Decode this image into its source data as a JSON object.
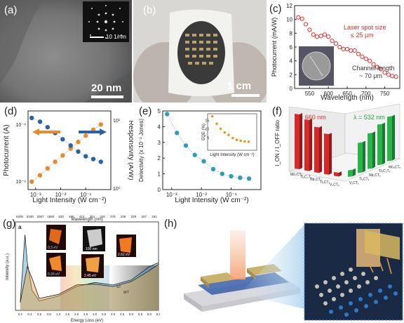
{
  "figure": {
    "panels": {
      "a": {
        "label": "(a)",
        "scale_bar": "20 nm",
        "inset_scale": "10 1/nm"
      },
      "b": {
        "label": "(b)",
        "scale_bar": "1 cm"
      },
      "c": {
        "label": "(c)",
        "annotation1": "Laser spot size",
        "annotation2": "≤ 25 μm",
        "annotation3": "Channel length",
        "annotation4": "~ 70 μm"
      },
      "d": {
        "label": "(d)"
      },
      "e": {
        "label": "(e)"
      },
      "f": {
        "label": "(f)",
        "lambda1": "λ = 660 nm",
        "lambda2": "λ = 532 nm"
      },
      "g": {
        "label": "(g)",
        "sublabel": "a",
        "x2label": "Wavelength (nm)",
        "insets": [
          "0.3 eV",
          "0.26 eV",
          "100 nm",
          "2.45 eV",
          "2.62 eV"
        ],
        "curve_labels": [
          "ST",
          "WT"
        ]
      },
      "h": {
        "label": "(h)"
      }
    }
  },
  "chart_data": [
    {
      "type": "scatter",
      "panel": "c",
      "xlabel": "Wavelength (nm)",
      "ylabel": "Photocurrent (mA/W)",
      "xlim": [
        510,
        790
      ],
      "ylim": [
        0,
        12
      ],
      "xticks": [
        "550",
        "600",
        "650",
        "700",
        "750"
      ],
      "yticks": [
        "0",
        "2",
        "4",
        "6",
        "8",
        "10",
        "12"
      ],
      "x": [
        520,
        530,
        540,
        550,
        560,
        570,
        580,
        590,
        600,
        610,
        620,
        630,
        640,
        650,
        660,
        670,
        680,
        690,
        700,
        710,
        720,
        730,
        740,
        750,
        760,
        770,
        780
      ],
      "values": [
        10.3,
        10.1,
        9.3,
        8.5,
        7.8,
        7.5,
        7.6,
        7.8,
        7.5,
        6.9,
        6.5,
        6.0,
        5.7,
        5.7,
        5.5,
        5.5,
        5.0,
        4.6,
        4.3,
        4.0,
        3.5,
        3.1,
        2.8,
        2.3,
        2.0,
        1.8,
        1.7
      ]
    },
    {
      "type": "scatter",
      "panel": "d",
      "xlabel": "Light Intensity (W cm⁻²)",
      "ylabel": "Photocurrent (A)",
      "y2label": "Responsivity (A/W)",
      "xlim": [
        0.0005,
        1
      ],
      "xticks": [
        "10⁻³",
        "10⁻²",
        "10⁻¹"
      ],
      "yticks": [
        "10⁻⁶",
        "10⁻⁴"
      ],
      "y2ticks": [
        "10⁰",
        "10¹"
      ],
      "series": [
        {
          "values": [
            [
              0.0007,
              9.5e-07
            ],
            [
              0.0015,
              1.6e-06
            ],
            [
              0.003,
              2.8e-06
            ],
            [
              0.006,
              4.8e-06
            ],
            [
              0.012,
              8e-06
            ],
            [
              0.025,
              1.4e-05
            ],
            [
              0.05,
              2.4e-05
            ],
            [
              0.1,
              4e-05
            ],
            [
              0.2,
              6.5e-05
            ],
            [
              0.4,
              0.0001
            ]
          ]
        },
        {
          "values": [
            [
              0.0007,
              0.00017
            ],
            [
              0.0015,
              0.000125
            ],
            [
              0.003,
              8e-05
            ],
            [
              0.006,
              5e-05
            ],
            [
              0.012,
              3e-05
            ],
            [
              0.025,
              1.8e-05
            ],
            [
              0.05,
              1.1e-05
            ],
            [
              0.1,
              7.5e-06
            ],
            [
              0.2,
              6e-06
            ],
            [
              0.4,
              4.8e-06
            ]
          ]
        }
      ]
    },
    {
      "type": "scatter",
      "panel": "e",
      "xlabel": "Light Intensity (W cm⁻²)",
      "ylabel": "Detectivity (x 10⁻¹ Jones)",
      "xlim": [
        0.0005,
        1
      ],
      "ylim": [
        0,
        5
      ],
      "xticks": [
        "10⁻³",
        "10⁻²",
        "10⁻¹"
      ],
      "yticks": [
        "0",
        "1",
        "2",
        "3",
        "4",
        "5"
      ],
      "values": [
        [
          0.0007,
          4.8
        ],
        [
          0.0015,
          3.6
        ],
        [
          0.003,
          2.8
        ],
        [
          0.006,
          2.2
        ],
        [
          0.012,
          1.8
        ],
        [
          0.025,
          1.3
        ],
        [
          0.05,
          1.0
        ],
        [
          0.1,
          0.85
        ],
        [
          0.2,
          0.75
        ],
        [
          0.4,
          0.7
        ]
      ],
      "inset": {
        "xlabel": "Light Intensity (W cm⁻²)",
        "ylabel": "EQE (%)",
        "yticks": [
          "5",
          "10",
          "15"
        ]
      }
    },
    {
      "type": "bar",
      "panel": "f",
      "ylabel": "I_ON / I_OFF ratio",
      "series": [
        {
          "name": "λ = 660 nm",
          "categories": [
            "Mo₂CTₓ",
            "Ti₃C₂Tₓ",
            "Nb₂CTₓ",
            "Ti₂CTₓ",
            "V₂CTₓ"
          ],
          "values": [
            10,
            9.3,
            8.3,
            7.4,
            0.7
          ]
        },
        {
          "name": "λ = 532 nm",
          "categories": [
            "V₂CTₓ",
            "Ti₂CTₓ",
            "Nb₂CTₓ",
            "Ti₃C₂Tₓ",
            "Mo₂CTₓ"
          ],
          "values": [
            1.2,
            5.5,
            6.5,
            7.4,
            8.1
          ]
        }
      ]
    },
    {
      "type": "line",
      "panel": "g",
      "xlabel": "Energy Loss (eV)",
      "ylabel": "Intensity (a.u.)",
      "xlim": [
        0.1,
        6.5
      ],
      "xticks": [
        "0.2",
        "0.4",
        "0.6",
        "0.8",
        "1.0",
        "1.5",
        "2.0",
        "2.5",
        "3.0",
        "3.5",
        "4.0",
        "4.5",
        "5.0",
        "5.5",
        "6.0",
        "6.5"
      ],
      "x2ticks": [
        "6200",
        "3100",
        "2067",
        "1550",
        "620",
        "496",
        "413",
        "354",
        "310",
        "276",
        "248",
        "225",
        "207",
        "191"
      ],
      "series": [
        {
          "name": "ST",
          "values": [
            [
              0.2,
              0.1
            ],
            [
              0.3,
              0.95
            ],
            [
              0.35,
              0.6
            ],
            [
              0.45,
              0.25
            ],
            [
              0.6,
              0.12
            ],
            [
              1.0,
              0.18
            ],
            [
              2.0,
              0.3
            ],
            [
              3.0,
              0.35
            ],
            [
              4.0,
              0.32
            ],
            [
              5.0,
              0.38
            ],
            [
              6.0,
              0.55
            ],
            [
              6.5,
              0.6
            ]
          ]
        },
        {
          "name": "WT",
          "values": [
            [
              0.2,
              0.1
            ],
            [
              0.35,
              0.55
            ],
            [
              0.45,
              0.4
            ],
            [
              0.6,
              0.15
            ],
            [
              1.0,
              0.2
            ],
            [
              2.0,
              0.32
            ],
            [
              3.0,
              0.33
            ],
            [
              4.0,
              0.3
            ],
            [
              5.0,
              0.36
            ],
            [
              6.0,
              0.5
            ],
            [
              6.5,
              0.58
            ]
          ]
        }
      ]
    }
  ]
}
